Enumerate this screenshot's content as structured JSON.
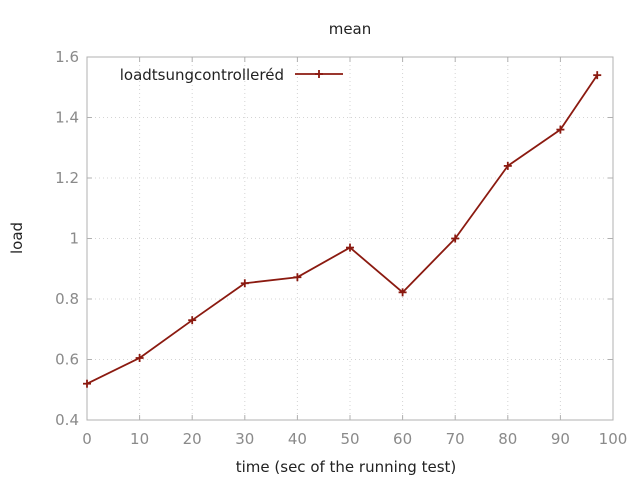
{
  "chart_data": {
    "type": "line",
    "title": "mean",
    "xlabel": "time (sec of the running test)",
    "ylabel": "load",
    "xlim": [
      0,
      100
    ],
    "ylim": [
      0.4,
      1.6
    ],
    "xticks": [
      0,
      10,
      20,
      30,
      40,
      50,
      60,
      70,
      80,
      90,
      100
    ],
    "yticks": [
      0.4,
      0.6,
      0.8,
      1,
      1.2,
      1.4,
      1.6
    ],
    "xtick_labels": [
      "0",
      "10",
      "20",
      "30",
      "40",
      "50",
      "60",
      "70",
      "80",
      "90",
      "100"
    ],
    "ytick_labels": [
      "0.4",
      "0.6",
      "0.8",
      "1",
      "1.2",
      "1.4",
      "1.6"
    ],
    "grid": true,
    "legend_position": "top-left",
    "series": [
      {
        "name": "loadtsungcontrolleréd",
        "color": "#8b1a10",
        "marker": "plus",
        "x": [
          0,
          10,
          20,
          30,
          40,
          50,
          60,
          70,
          80,
          90,
          97
        ],
        "y": [
          0.52,
          0.605,
          0.73,
          0.852,
          0.872,
          0.97,
          0.822,
          1.0,
          1.24,
          1.36,
          1.54
        ]
      }
    ]
  }
}
